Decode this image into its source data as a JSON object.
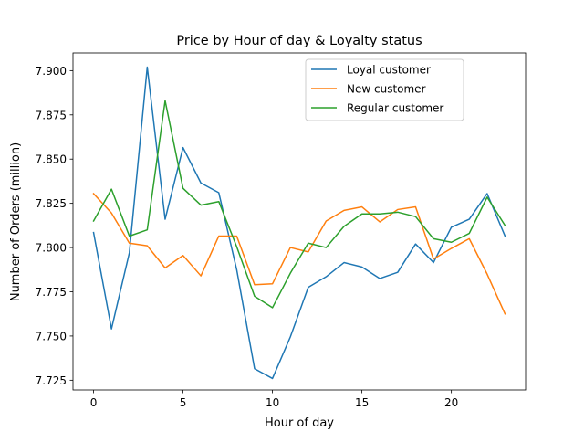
{
  "chart_data": {
    "type": "line",
    "title": "Price by Hour of day & Loyalty status",
    "xlabel": "Hour of day",
    "ylabel": "Number of Orders (million)",
    "xlim": [
      -1.15,
      24.15
    ],
    "ylim": [
      7.7195,
      7.91
    ],
    "xticks": [
      0,
      5,
      10,
      15,
      20
    ],
    "xtick_labels": [
      "0",
      "5",
      "10",
      "15",
      "20"
    ],
    "yticks": [
      7.725,
      7.75,
      7.775,
      7.8,
      7.825,
      7.85,
      7.875,
      7.9
    ],
    "ytick_labels": [
      "7.725",
      "7.750",
      "7.775",
      "7.800",
      "7.825",
      "7.850",
      "7.875",
      "7.900"
    ],
    "grid": false,
    "legend_position": "upper-right",
    "x": [
      0,
      1,
      2,
      3,
      4,
      5,
      6,
      7,
      8,
      9,
      10,
      11,
      12,
      13,
      14,
      15,
      16,
      17,
      18,
      19,
      20,
      21,
      22,
      23
    ],
    "series": [
      {
        "name": "Loyal customer",
        "color": "#1f77b4",
        "values": [
          7.8085,
          7.754,
          7.797,
          7.902,
          7.816,
          7.8565,
          7.8365,
          7.831,
          7.7875,
          7.7315,
          7.726,
          7.7495,
          7.7775,
          7.7835,
          7.7915,
          7.789,
          7.7825,
          7.786,
          7.802,
          7.7915,
          7.8115,
          7.816,
          7.8305,
          7.8065
        ]
      },
      {
        "name": "New customer",
        "color": "#ff7f0e",
        "values": [
          7.8305,
          7.8195,
          7.8025,
          7.801,
          7.7885,
          7.7955,
          7.784,
          7.8065,
          7.8065,
          7.779,
          7.7795,
          7.8,
          7.7975,
          7.815,
          7.821,
          7.823,
          7.8145,
          7.8215,
          7.823,
          7.7935,
          7.7995,
          7.805,
          7.785,
          7.7625
        ]
      },
      {
        "name": "Regular customer",
        "color": "#2ca02c",
        "values": [
          7.815,
          7.833,
          7.8065,
          7.81,
          7.883,
          7.8335,
          7.824,
          7.826,
          7.8005,
          7.7725,
          7.766,
          7.7855,
          7.8025,
          7.8,
          7.812,
          7.819,
          7.819,
          7.82,
          7.8175,
          7.805,
          7.803,
          7.808,
          7.8285,
          7.8125
        ]
      }
    ]
  }
}
